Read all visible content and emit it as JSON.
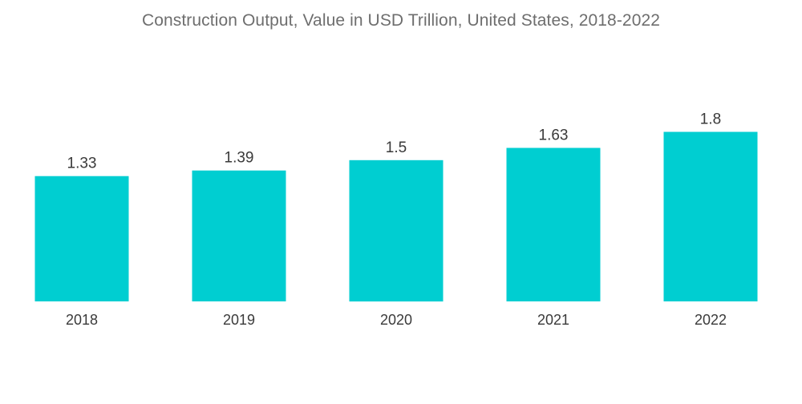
{
  "chart_data": {
    "type": "bar",
    "title": "Construction Output, Value in USD Trillion, United States, 2018-2022",
    "categories": [
      "2018",
      "2019",
      "2020",
      "2021",
      "2022"
    ],
    "values": [
      1.33,
      1.39,
      1.5,
      1.63,
      1.8
    ],
    "value_labels": [
      "1.33",
      "1.39",
      "1.5",
      "1.63",
      "1.8"
    ],
    "xlabel": "",
    "ylabel": "",
    "grid": false,
    "legend": "none",
    "bar_color": "#00CED1"
  }
}
